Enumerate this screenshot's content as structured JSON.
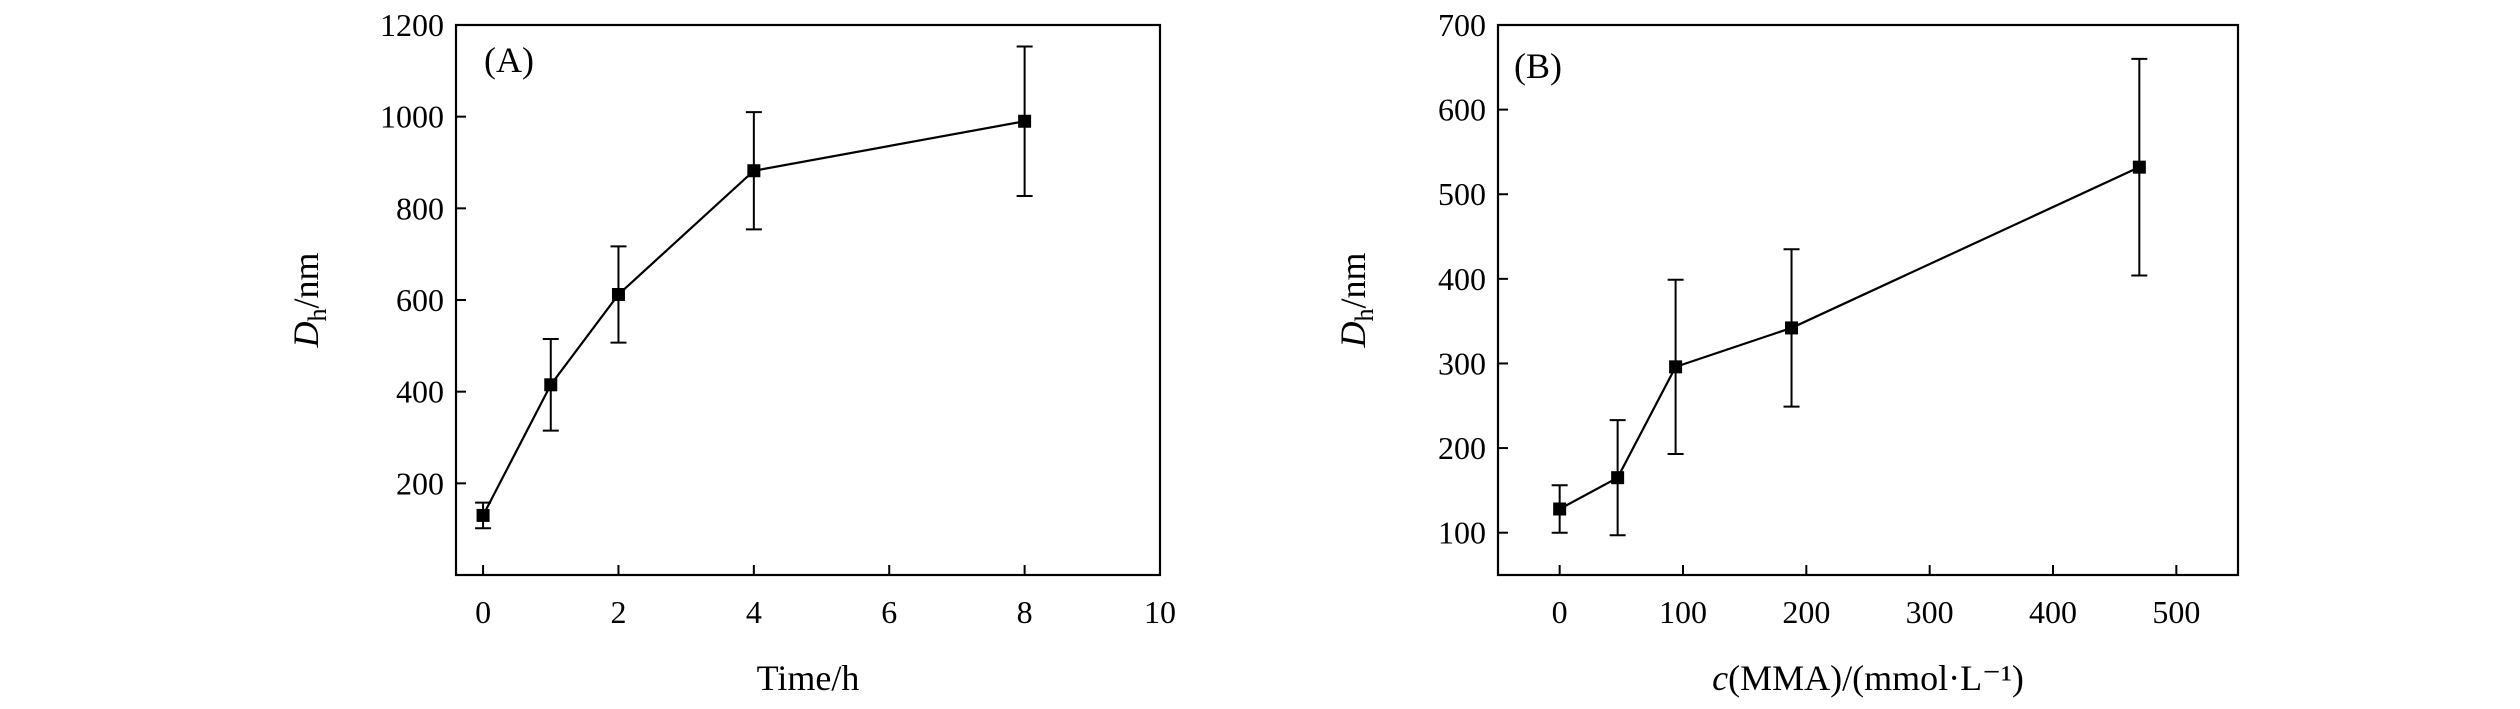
{
  "chart_data": [
    {
      "type": "line",
      "panel_label": "(A)",
      "xlabel": "Time/h",
      "ylabel": "D",
      "ylabel_sub": "h",
      "ylabel_unit": "/nm",
      "xlim": [
        -0.4,
        10
      ],
      "ylim": [
        0,
        1200
      ],
      "xticks": [
        0,
        2,
        4,
        6,
        8,
        10
      ],
      "yticks": [
        200,
        400,
        600,
        800,
        1000,
        1200
      ],
      "x": [
        0,
        1,
        2,
        4,
        8
      ],
      "y": [
        130,
        415,
        612,
        882,
        990
      ],
      "yerr": [
        28,
        100,
        105,
        128,
        163
      ],
      "grid": false,
      "marker": "square"
    },
    {
      "type": "line",
      "panel_label": "(B)",
      "xlabel": "c(MMA)/(mmol·L⁻¹)",
      "xlabel_italic": "c",
      "xlabel_rest": "(MMA)/(mmol·L⁻¹)",
      "ylabel": "D",
      "ylabel_sub": "h",
      "ylabel_unit": "/nm",
      "xlim": [
        -50,
        550
      ],
      "ylim": [
        50,
        700
      ],
      "xticks": [
        0,
        100,
        200,
        300,
        400,
        500
      ],
      "yticks": [
        100,
        200,
        300,
        400,
        500,
        600,
        700
      ],
      "x": [
        0,
        47,
        94,
        188,
        470
      ],
      "y": [
        128,
        165,
        296,
        342,
        532
      ],
      "yerr": [
        28,
        68,
        103,
        93,
        128
      ],
      "grid": false,
      "marker": "square"
    }
  ]
}
